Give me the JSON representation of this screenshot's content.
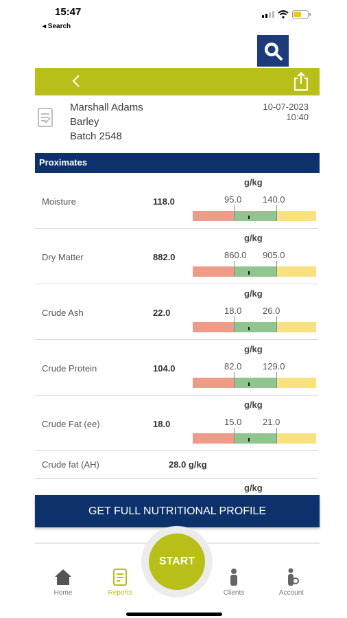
{
  "status_bar": {
    "time": "15:47",
    "back_label": "◂ Search"
  },
  "report": {
    "client": "Marshall Adams",
    "crop": "Barley",
    "batch": "Batch 2548",
    "date": "10-07-2023",
    "time": "10:40"
  },
  "section": {
    "title": "Proximates"
  },
  "measurements": [
    {
      "label": "Moisture",
      "value": "118.0",
      "unit": "g/kg",
      "low": "95.0",
      "high": "140.0",
      "position": 0.45
    },
    {
      "label": "Dry Matter",
      "value": "882.0",
      "unit": "g/kg",
      "low": "860.0",
      "high": "905.0",
      "position": 0.45
    },
    {
      "label": "Crude Ash",
      "value": "22.0",
      "unit": "g/kg",
      "low": "18.0",
      "high": "26.0",
      "position": 0.45
    },
    {
      "label": "Crude Protein",
      "value": "104.0",
      "unit": "g/kg",
      "low": "82.0",
      "high": "129.0",
      "position": 0.45
    },
    {
      "label": "Crude Fat (ee)",
      "value": "18.0",
      "unit": "g/kg",
      "low": "15.0",
      "high": "21.0",
      "position": 0.45
    }
  ],
  "simple_row": {
    "label": "Crude fat (AH)",
    "value": "28.0 g/kg"
  },
  "partial_unit": "g/kg",
  "cta": {
    "label": "GET FULL NUTRITIONAL PROFILE"
  },
  "tabs": {
    "home": "Home",
    "reports": "Reports",
    "start": "START",
    "clients": "Clients",
    "account": "Account"
  },
  "colors": {
    "brand_green": "#b7bf18",
    "brand_navy": "#0d326b",
    "gauge_low": "#ee9b87",
    "gauge_ok": "#90c590",
    "gauge_high": "#f8e27f"
  }
}
